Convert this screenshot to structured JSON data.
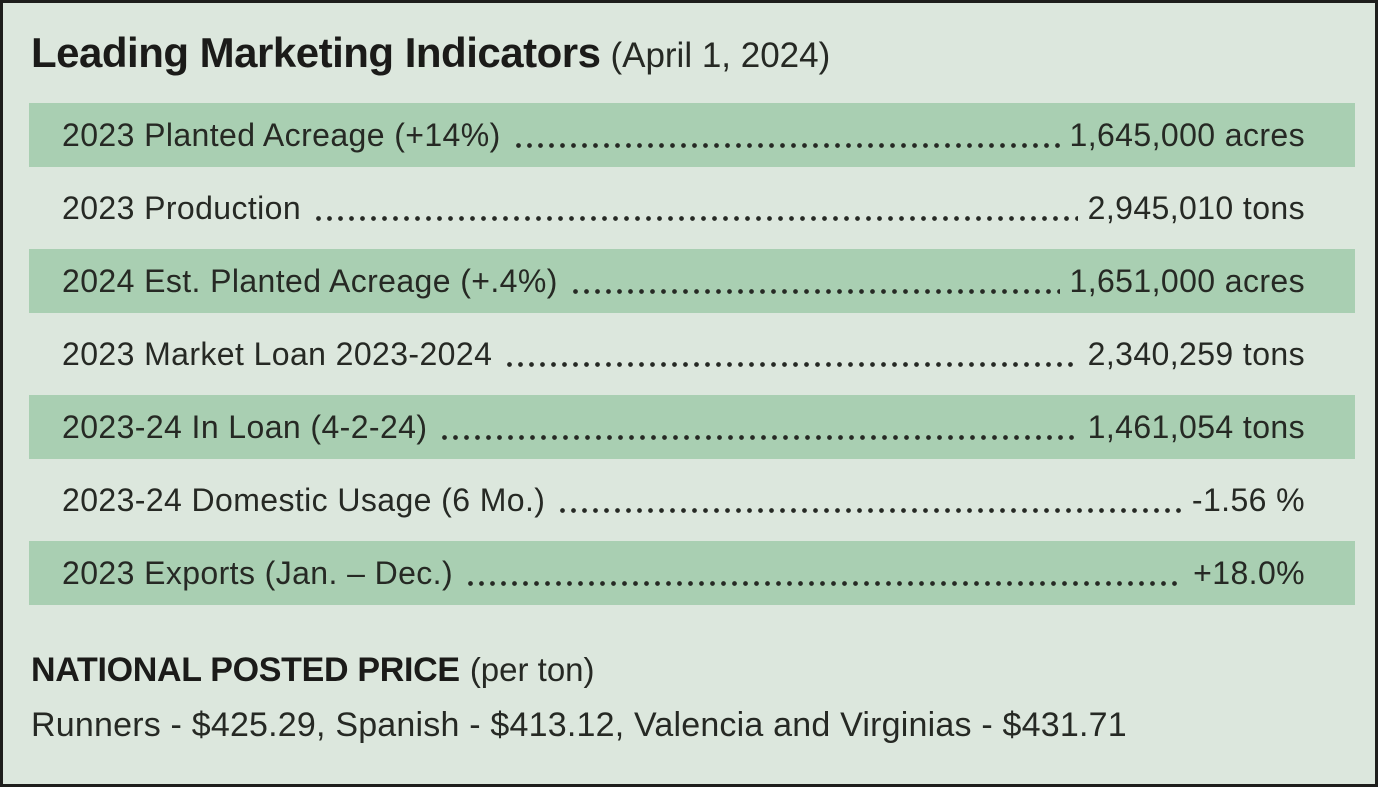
{
  "title": {
    "main": "Leading Marketing Indicators",
    "date": "(April 1, 2024)"
  },
  "indicators": [
    {
      "label": "2023 Planted Acreage (+14%)",
      "value": "1,645,000 acres",
      "highlighted": true
    },
    {
      "label": "2023 Production",
      "value": "2,945,010 tons",
      "highlighted": false
    },
    {
      "label": "2024 Est. Planted Acreage (+.4%)",
      "value": "1,651,000 acres",
      "highlighted": true
    },
    {
      "label": "2023 Market Loan 2023-2024",
      "value": "2,340,259 tons",
      "highlighted": false
    },
    {
      "label": "2023-24 In Loan (4-2-24)",
      "value": "1,461,054 tons",
      "highlighted": true
    },
    {
      "label": "2023-24 Domestic Usage (6 Mo.)",
      "value": "-1.56 %",
      "highlighted": false
    },
    {
      "label": "2023 Exports (Jan. – Dec.)",
      "value": "+18.0%",
      "highlighted": true
    }
  ],
  "national_posted_price": {
    "heading": "NATIONAL POSTED PRICE",
    "unit": "(per ton)",
    "prices_line": "Runners - $425.29, Spanish - $413.12, Valencia and Virginias - $431.71"
  },
  "colors": {
    "background": "#dce7dd",
    "row_highlight": "#a9cfb2",
    "border": "#1e1e1c",
    "text": "#262924",
    "title_text": "#1b1b19"
  }
}
